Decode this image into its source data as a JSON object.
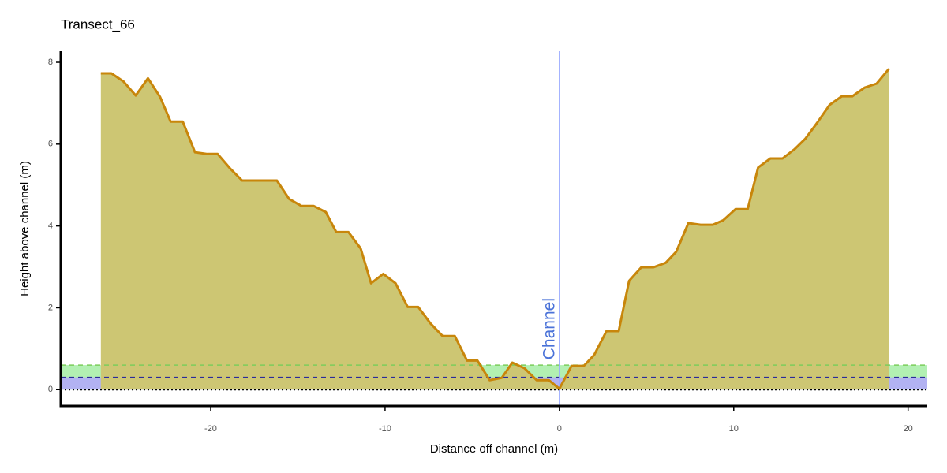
{
  "chart_data": {
    "type": "area",
    "title": "Transect_66",
    "x_label": "Distance off channel (m)",
    "y_label": "Height above channel (m)",
    "x": [
      -26.3,
      -25.7,
      -25.0,
      -24.3,
      -23.6,
      -22.9,
      -22.3,
      -21.6,
      -20.9,
      -20.2,
      -19.6,
      -18.9,
      -18.2,
      -17.5,
      -16.8,
      -16.2,
      -15.5,
      -14.8,
      -14.1,
      -13.4,
      -12.8,
      -12.1,
      -11.4,
      -10.8,
      -10.1,
      -9.4,
      -8.7,
      -8.1,
      -7.4,
      -6.7,
      -6.0,
      -5.3,
      -4.7,
      -4.0,
      -3.3,
      -2.7,
      -2.0,
      -1.3,
      -0.6,
      0,
      0.7,
      1.4,
      2.0,
      2.7,
      3.4,
      4.0,
      4.7,
      5.4,
      6.1,
      6.7,
      7.4,
      8.1,
      8.8,
      9.4,
      10.1,
      10.8,
      11.4,
      12.1,
      12.8,
      13.5,
      14.1,
      14.8,
      15.5,
      16.2,
      16.8,
      17.5,
      18.2,
      18.9
    ],
    "values": [
      7.73,
      7.73,
      7.53,
      7.19,
      7.61,
      7.15,
      6.55,
      6.55,
      5.8,
      5.76,
      5.76,
      5.41,
      5.11,
      5.11,
      5.11,
      5.11,
      4.66,
      4.49,
      4.49,
      4.34,
      3.85,
      3.85,
      3.45,
      2.6,
      2.83,
      2.6,
      2.02,
      2.02,
      1.62,
      1.31,
      1.31,
      0.71,
      0.71,
      0.23,
      0.29,
      0.66,
      0.52,
      0.23,
      0.23,
      0.02,
      0.58,
      0.58,
      0.85,
      1.43,
      1.43,
      2.66,
      2.99,
      2.99,
      3.1,
      3.37,
      4.07,
      4.03,
      4.03,
      4.14,
      4.41,
      4.41,
      5.43,
      5.65,
      5.65,
      5.88,
      6.13,
      6.53,
      6.96,
      7.17,
      7.17,
      7.38,
      7.48,
      7.84
    ],
    "color": "#c8860b",
    "fill": "#cdc673",
    "xlim": [
      -28.6,
      21.1
    ],
    "ylim": [
      -0.4,
      8.27
    ],
    "xticks": [
      -20,
      -10,
      0,
      10,
      20
    ],
    "yticks": [
      0,
      2,
      4,
      6,
      8
    ],
    "bands": [
      {
        "from": 0,
        "to": 0.6,
        "color": "#b2f0b2"
      },
      {
        "from": 0,
        "to": 0.3,
        "color": "#b2b2f2"
      }
    ],
    "hlines": [
      {
        "y": 0.6,
        "color": "#7ccd5c",
        "style": "dashed"
      },
      {
        "y": 0.3,
        "color": "#2b2b9a",
        "style": "dashed"
      },
      {
        "y": 0,
        "color": "#000000",
        "style": "dotted"
      }
    ],
    "vline": {
      "x": 0,
      "color": "#9aabff",
      "label": "Channel",
      "label_color": "#4a72d8"
    }
  }
}
